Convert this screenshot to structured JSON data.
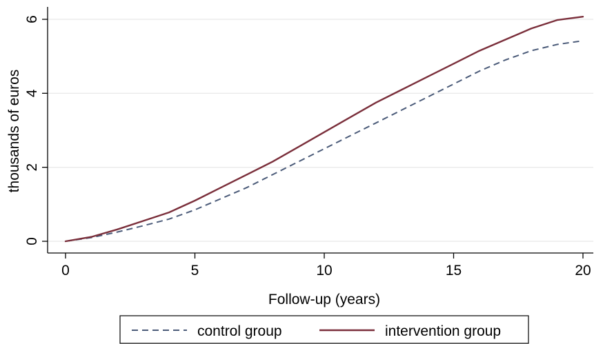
{
  "chart_data": {
    "type": "line",
    "title": "",
    "xlabel": "Follow-up (years)",
    "ylabel": "thousands of euros",
    "xlim": [
      0,
      20
    ],
    "ylim": [
      0,
      6
    ],
    "xticks": [
      0,
      5,
      10,
      15,
      20
    ],
    "yticks": [
      0,
      2,
      4,
      6
    ],
    "grid": "horizontal",
    "legend_position": "bottom",
    "series": [
      {
        "name": "control group",
        "color": "#4a5a78",
        "dash": "dashed",
        "points": [
          [
            0,
            0
          ],
          [
            1,
            0.1
          ],
          [
            2,
            0.25
          ],
          [
            3,
            0.42
          ],
          [
            4,
            0.6
          ],
          [
            5,
            0.85
          ],
          [
            6,
            1.15
          ],
          [
            7,
            1.45
          ],
          [
            8,
            1.8
          ],
          [
            9,
            2.15
          ],
          [
            10,
            2.5
          ],
          [
            11,
            2.85
          ],
          [
            12,
            3.2
          ],
          [
            13,
            3.55
          ],
          [
            14,
            3.9
          ],
          [
            15,
            4.25
          ],
          [
            16,
            4.6
          ],
          [
            17,
            4.9
          ],
          [
            18,
            5.15
          ],
          [
            19,
            5.32
          ],
          [
            20,
            5.42
          ]
        ]
      },
      {
        "name": "intervention group",
        "color": "#7a2e3a",
        "dash": "solid",
        "points": [
          [
            0,
            0
          ],
          [
            1,
            0.12
          ],
          [
            2,
            0.32
          ],
          [
            3,
            0.55
          ],
          [
            4,
            0.78
          ],
          [
            5,
            1.1
          ],
          [
            6,
            1.45
          ],
          [
            7,
            1.8
          ],
          [
            8,
            2.15
          ],
          [
            9,
            2.55
          ],
          [
            10,
            2.95
          ],
          [
            11,
            3.35
          ],
          [
            12,
            3.75
          ],
          [
            13,
            4.1
          ],
          [
            14,
            4.45
          ],
          [
            15,
            4.8
          ],
          [
            16,
            5.15
          ],
          [
            17,
            5.45
          ],
          [
            18,
            5.75
          ],
          [
            19,
            5.98
          ],
          [
            20,
            6.07
          ]
        ]
      }
    ]
  }
}
